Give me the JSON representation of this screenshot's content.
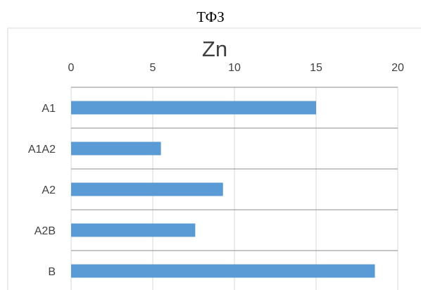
{
  "page_title": "ТФЗ",
  "chart_data": {
    "type": "bar",
    "orientation": "horizontal",
    "title": "Zn",
    "categories": [
      "A1",
      "A1A2",
      "A2",
      "A2B",
      "B"
    ],
    "values": [
      15,
      5.5,
      9.3,
      7.6,
      18.6
    ],
    "xlim": [
      0,
      20
    ],
    "xticks": [
      0,
      5,
      10,
      15,
      20
    ],
    "x_axis_position": "top",
    "grid": true,
    "bar_color": "#5B9BD5",
    "grid_color": "#D9D9D9",
    "category_line_color": "#8C8C8C"
  }
}
